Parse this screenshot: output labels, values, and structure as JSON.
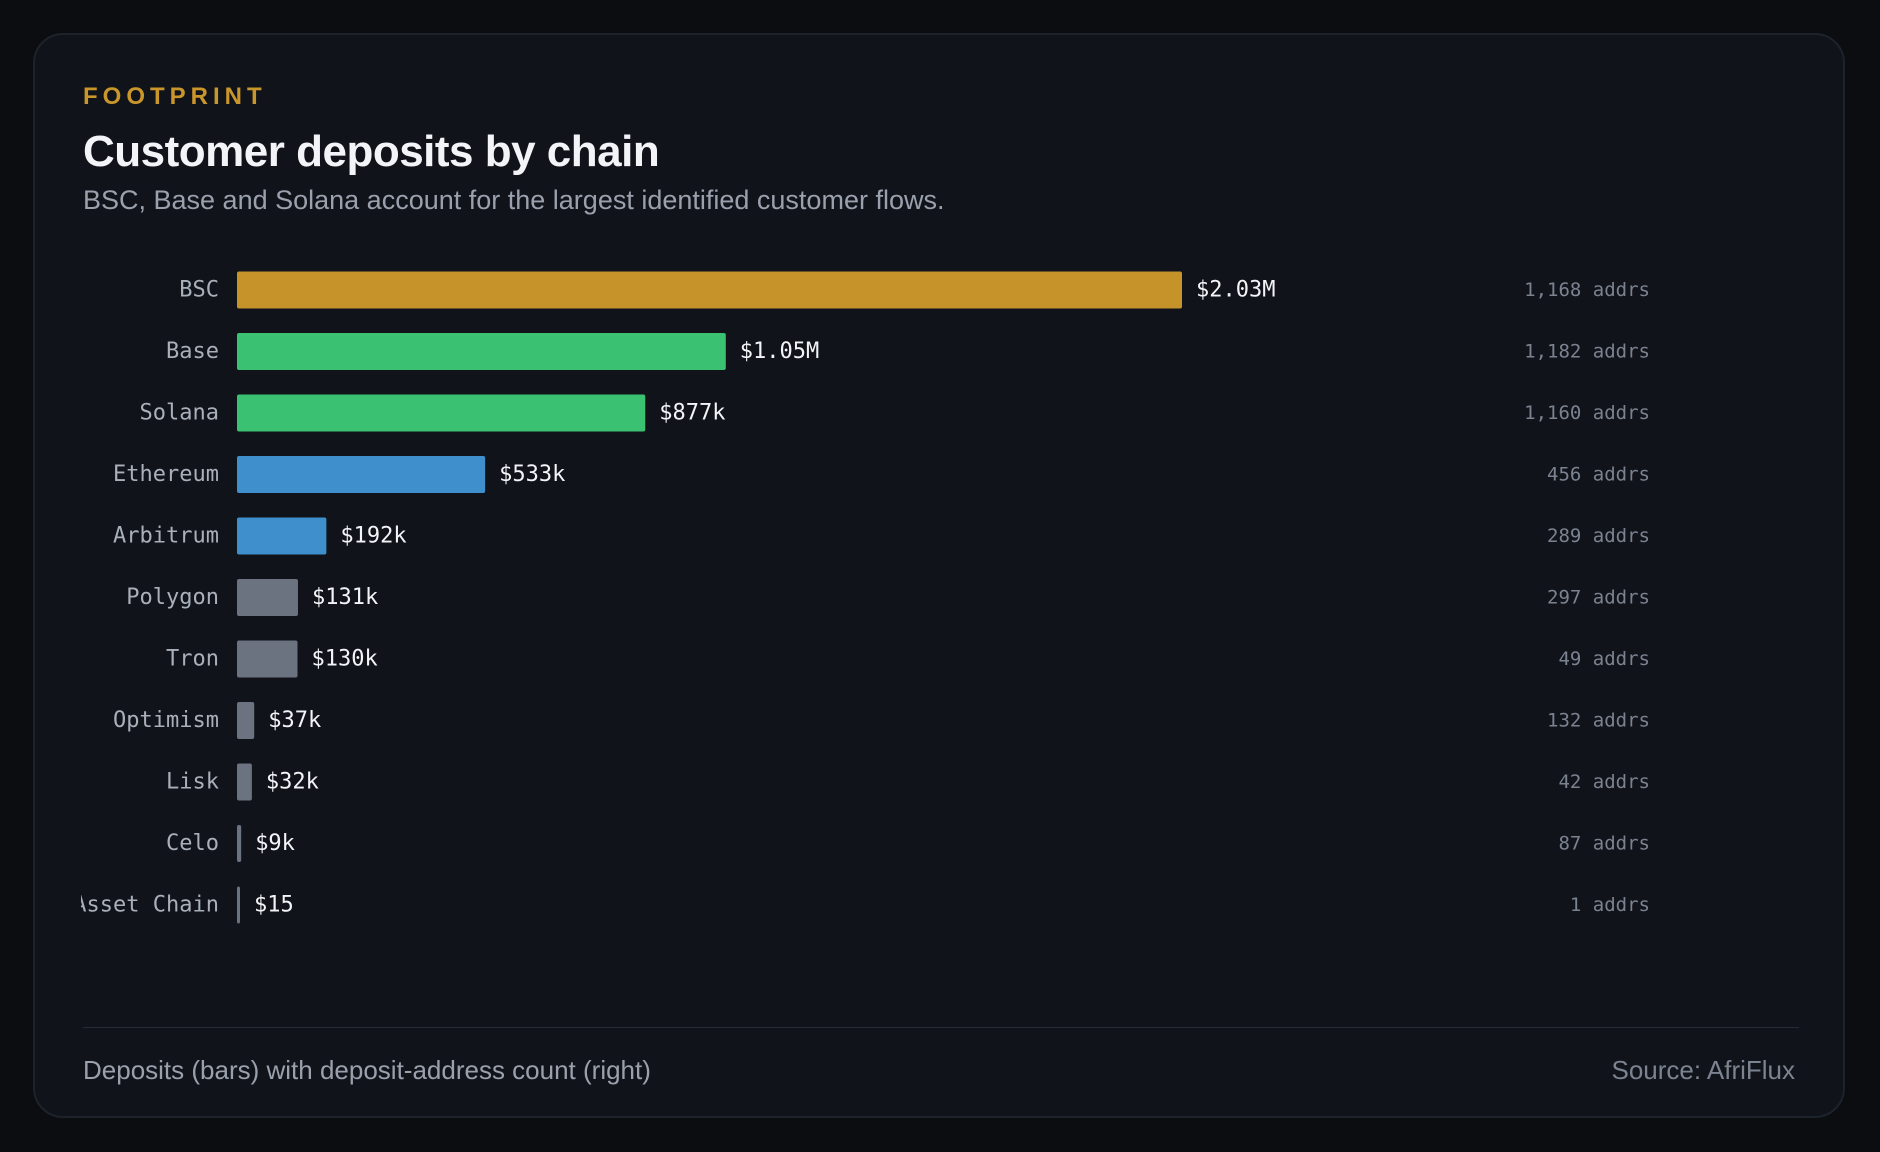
{
  "header": {
    "eyebrow": "FOOTPRINT",
    "title": "Customer deposits by chain",
    "subtitle": "BSC, Base and Solana account for the largest identified customer flows."
  },
  "footer": {
    "note": "Deposits (bars) with deposit-address count (right)",
    "source": "Source: AfriFlux"
  },
  "colors": {
    "gold": "#c59329",
    "green": "#3bc172",
    "blue": "#3f8fcc",
    "gray": "#6b7280"
  },
  "chart_data": {
    "type": "bar",
    "orientation": "horizontal",
    "xlim": [
      0,
      2030000
    ],
    "categories": [
      "BSC",
      "Base",
      "Solana",
      "Ethereum",
      "Arbitrum",
      "Polygon",
      "Tron",
      "Optimism",
      "Lisk",
      "Celo",
      "Asset Chain"
    ],
    "values": [
      2030000,
      1050000,
      877000,
      533000,
      192000,
      131000,
      130000,
      37000,
      32000,
      9000,
      15
    ],
    "value_labels": [
      "$2.03M",
      "$1.05M",
      "$877k",
      "$533k",
      "$192k",
      "$131k",
      "$130k",
      "$37k",
      "$32k",
      "$9k",
      "$15"
    ],
    "address_labels": [
      "1,168 addrs",
      "1,182 addrs",
      "1,160 addrs",
      "456 addrs",
      "289 addrs",
      "297 addrs",
      "49 addrs",
      "132 addrs",
      "42 addrs",
      "87 addrs",
      "1 addrs"
    ],
    "bar_colors": [
      "gold",
      "green",
      "green",
      "blue",
      "blue",
      "gray",
      "gray",
      "gray",
      "gray",
      "gray",
      "gray"
    ]
  }
}
